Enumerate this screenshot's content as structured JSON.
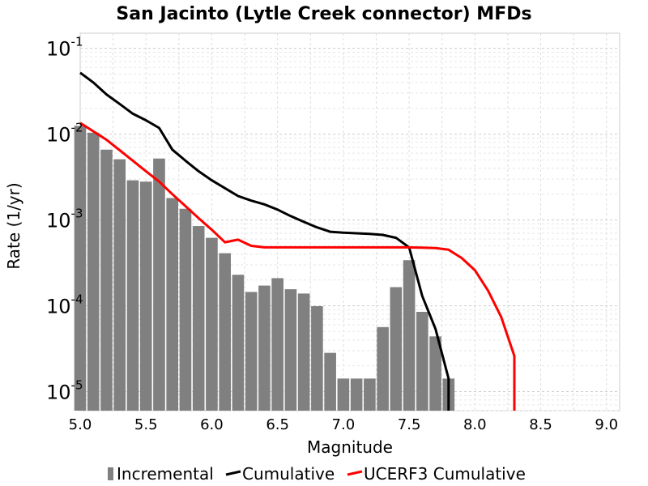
{
  "chart_data": {
    "type": "bar",
    "title": "San Jacinto (Lytle Creek connector) MFDs",
    "xlabel": "Magnitude",
    "ylabel": "Rate (1/yr)",
    "xlim": [
      5.0,
      9.1
    ],
    "ylim": [
      6e-06,
      0.15
    ],
    "y_scale": "log",
    "grid": true,
    "legend_position": "bottom",
    "x_ticks": [
      "5.0",
      "5.5",
      "6.0",
      "6.5",
      "7.0",
      "7.5",
      "8.0",
      "8.5",
      "9.0"
    ],
    "y_ticks": [
      {
        "base": "10",
        "exp": "-1"
      },
      {
        "base": "10",
        "exp": "-2"
      },
      {
        "base": "10",
        "exp": "-3"
      },
      {
        "base": "10",
        "exp": "-4"
      },
      {
        "base": "10",
        "exp": "-5"
      }
    ],
    "series": [
      {
        "name": "Incremental",
        "type": "bar",
        "color": "#808080",
        "x": [
          5.0,
          5.1,
          5.2,
          5.3,
          5.4,
          5.5,
          5.6,
          5.7,
          5.8,
          5.9,
          6.0,
          6.1,
          6.2,
          6.3,
          6.4,
          6.5,
          6.6,
          6.7,
          6.8,
          6.9,
          7.0,
          7.1,
          7.2,
          7.3,
          7.4,
          7.5,
          7.6,
          7.7,
          7.8
        ],
        "values": [
          0.0125,
          0.0104,
          0.0066,
          0.0051,
          0.0029,
          0.0028,
          0.0052,
          0.0018,
          0.00135,
          0.00085,
          0.00062,
          0.00041,
          0.00023,
          0.000145,
          0.000172,
          0.00021,
          0.000156,
          0.000139,
          9.9e-05,
          2.83e-05,
          1.42e-05,
          1.42e-05,
          1.42e-05,
          5.65e-05,
          0.000165,
          0.00034,
          8.5e-05,
          4.4e-05,
          1.42e-05
        ]
      },
      {
        "name": "Cumulative",
        "type": "line",
        "color": "#000000",
        "x": [
          5.0,
          5.1,
          5.2,
          5.3,
          5.4,
          5.5,
          5.6,
          5.7,
          5.8,
          5.9,
          6.0,
          6.1,
          6.2,
          6.3,
          6.4,
          6.5,
          6.6,
          6.7,
          6.8,
          6.9,
          7.0,
          7.1,
          7.2,
          7.3,
          7.4,
          7.5,
          7.6,
          7.7,
          7.8,
          7.8
        ],
        "values": [
          0.052,
          0.04,
          0.029,
          0.0225,
          0.0173,
          0.0145,
          0.0118,
          0.0066,
          0.0049,
          0.0037,
          0.0029,
          0.00235,
          0.0019,
          0.00168,
          0.00152,
          0.00132,
          0.00111,
          0.00095,
          0.00082,
          0.00073,
          0.00071,
          0.0007,
          0.00069,
          0.00067,
          0.00062,
          0.00048,
          0.00013,
          5.4e-05,
          1.42e-05,
          6e-06
        ]
      },
      {
        "name": "UCERF3 Cumulative",
        "type": "line",
        "color": "#ff0000",
        "x": [
          5.0,
          5.1,
          5.2,
          5.3,
          5.4,
          5.5,
          5.6,
          5.7,
          5.8,
          5.9,
          6.0,
          6.1,
          6.2,
          6.3,
          6.4,
          6.5,
          6.6,
          6.7,
          6.8,
          6.9,
          7.0,
          7.1,
          7.2,
          7.3,
          7.4,
          7.5,
          7.6,
          7.7,
          7.8,
          7.9,
          8.0,
          8.1,
          8.2,
          8.3,
          8.3
        ],
        "values": [
          0.0135,
          0.0108,
          0.0086,
          0.0065,
          0.0049,
          0.0037,
          0.0028,
          0.002,
          0.00145,
          0.00105,
          0.00077,
          0.00055,
          0.00059,
          0.0005,
          0.00048,
          0.00048,
          0.00048,
          0.00048,
          0.00048,
          0.00048,
          0.00048,
          0.00048,
          0.00048,
          0.00048,
          0.00048,
          0.00048,
          0.000476,
          0.00047,
          0.00045,
          0.00036,
          0.00026,
          0.00015,
          7.4e-05,
          2.6e-05,
          6e-06
        ]
      }
    ]
  }
}
